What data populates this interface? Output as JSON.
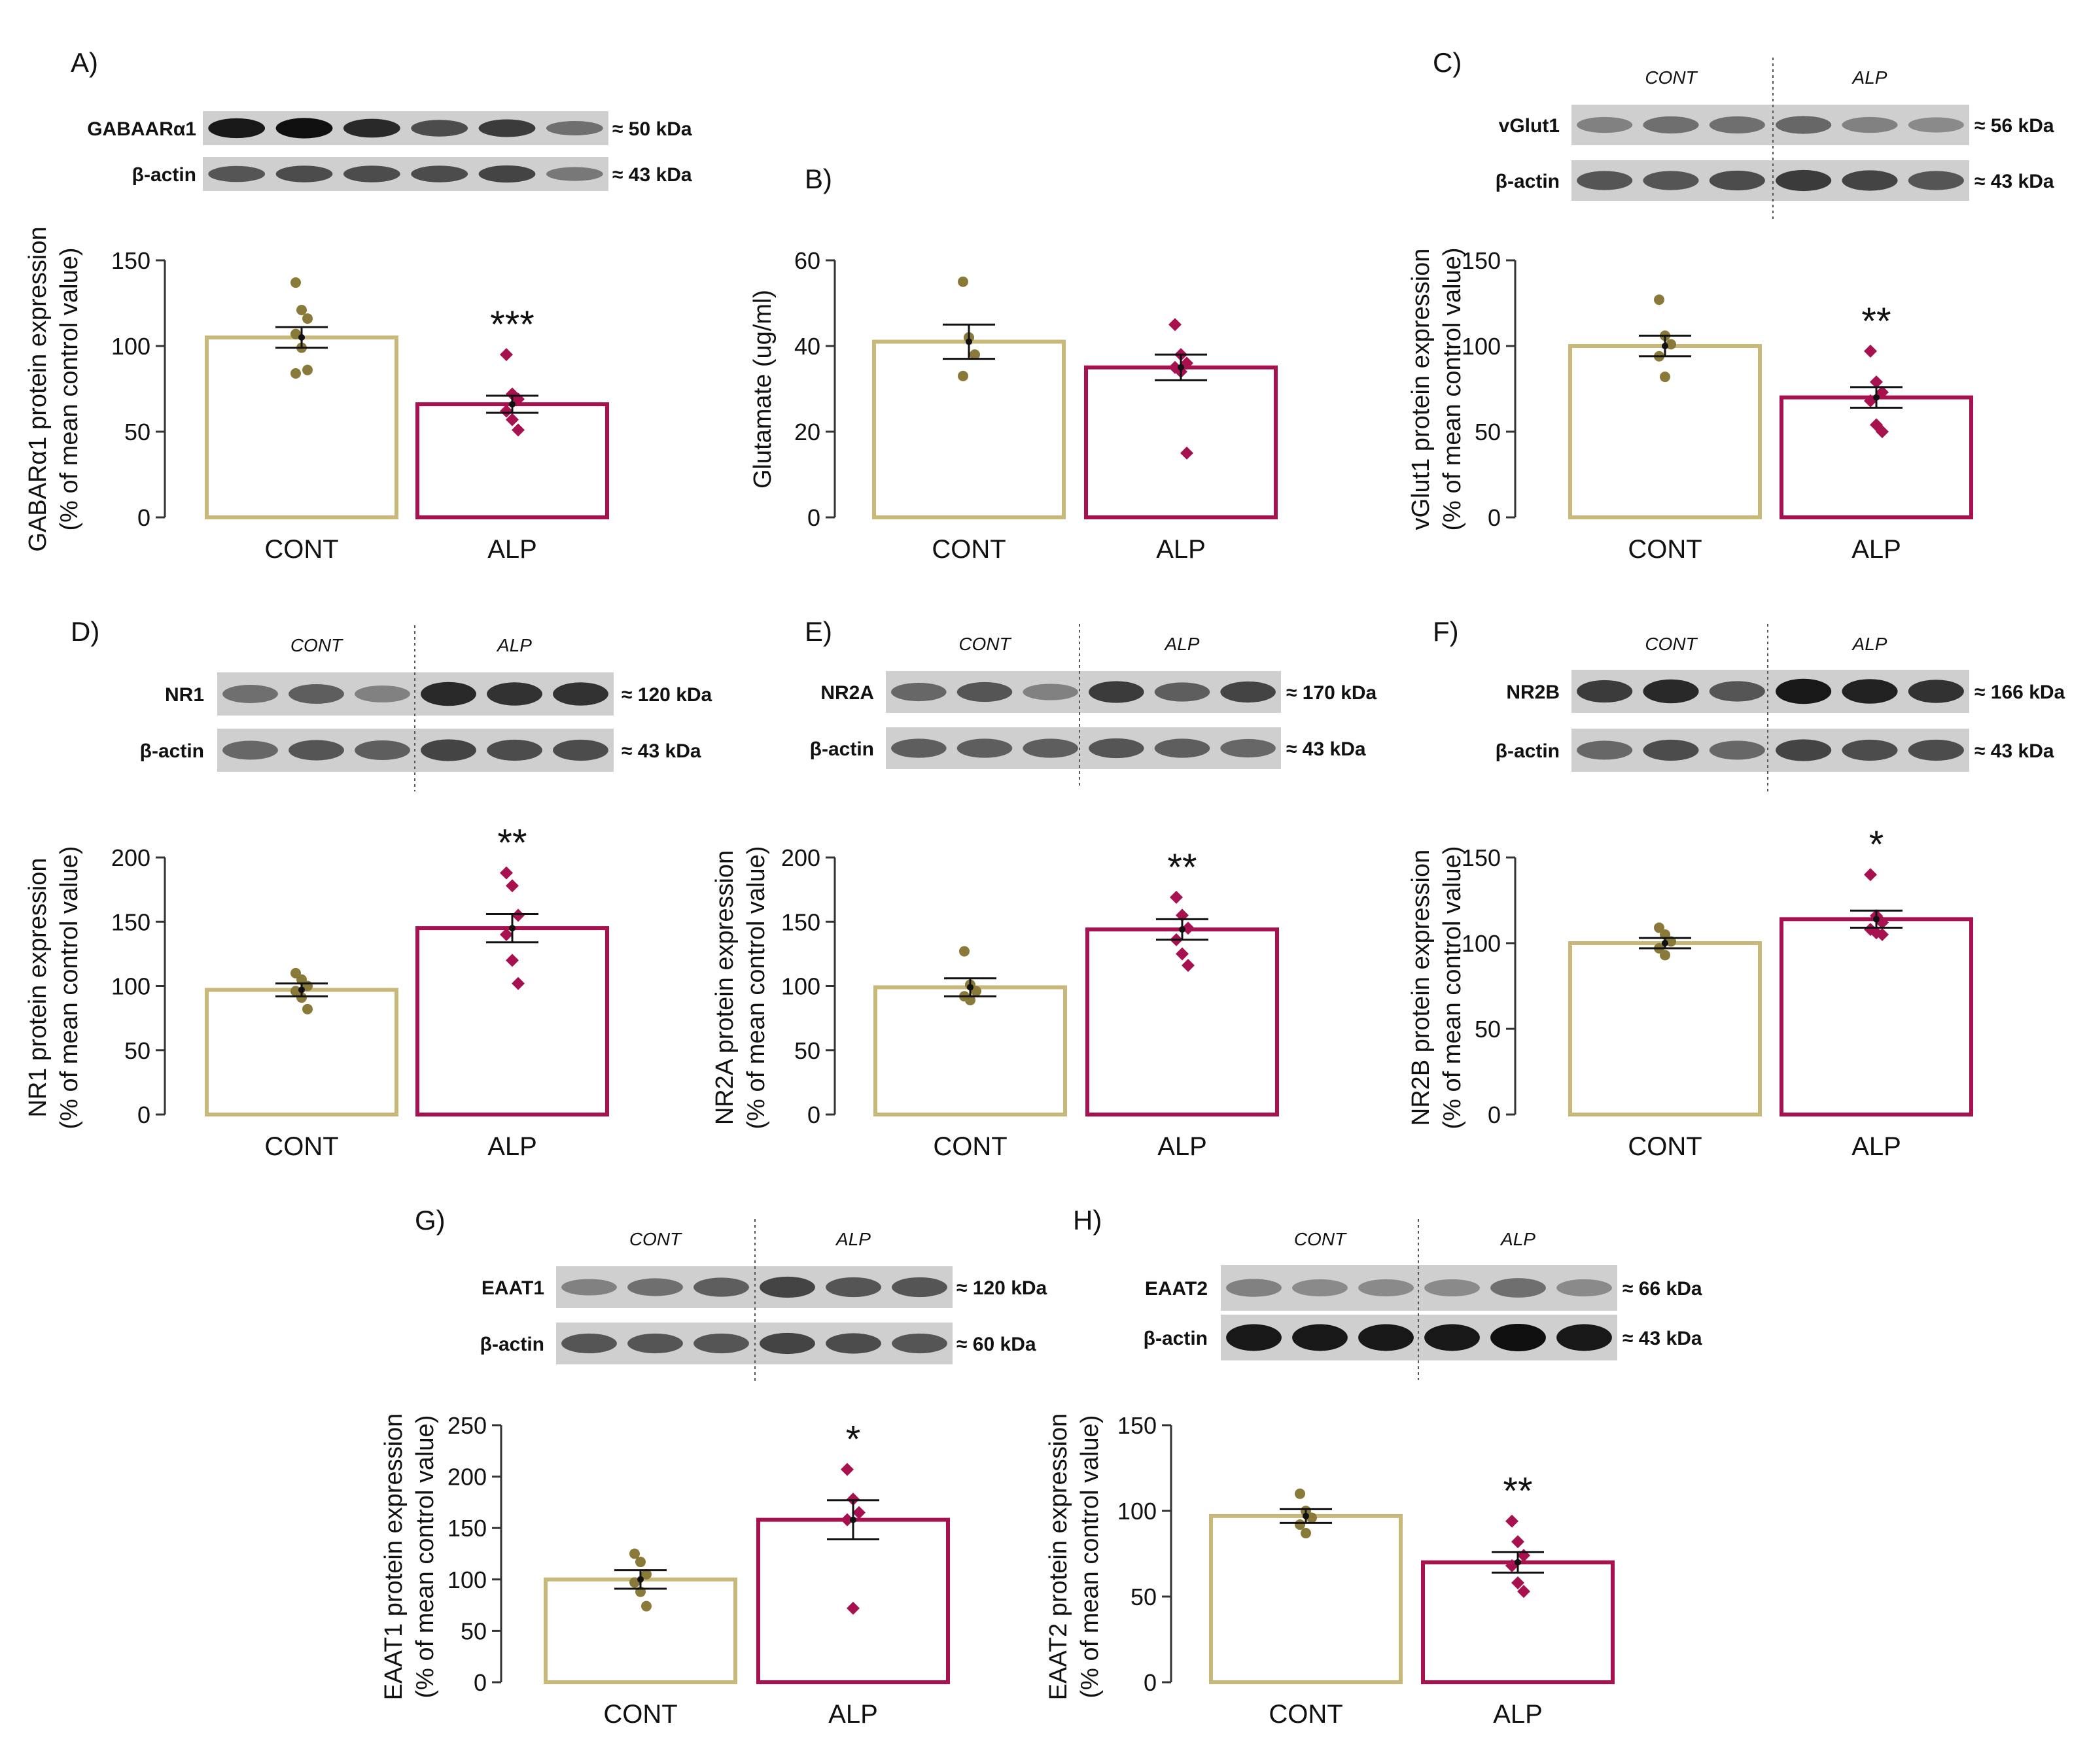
{
  "figure": {
    "colors": {
      "cont": "#c8b87a",
      "alp": "#a8114f",
      "cont_dot": "#8a7a3a",
      "alp_dot": "#a8114f",
      "axis": "#333333",
      "ink": "#111111"
    },
    "blot_group_labels": {
      "cont": "CONT",
      "alp": "ALP"
    },
    "beta_actin_label": "β-actin"
  },
  "blots": [
    {
      "panel": "A",
      "protein": "GABAARα1",
      "protein_kda": "≈ 50 kDa",
      "loading_kda": "≈ 43 kDa",
      "grouped": false,
      "protein_intensity": [
        0.95,
        1.0,
        0.85,
        0.65,
        0.75,
        0.45
      ],
      "loading_intensity": [
        0.6,
        0.65,
        0.65,
        0.65,
        0.7,
        0.4
      ]
    },
    {
      "panel": "C",
      "protein": "vGlut1",
      "protein_kda": "≈ 56 kDa",
      "loading_kda": "≈ 43 kDa",
      "grouped": true,
      "protein_intensity": [
        0.35,
        0.45,
        0.45,
        0.5,
        0.35,
        0.3
      ],
      "loading_intensity": [
        0.6,
        0.6,
        0.65,
        0.75,
        0.7,
        0.6
      ]
    },
    {
      "panel": "D",
      "protein": "NR1",
      "protein_kda": "≈ 120 kDa",
      "loading_kda": "≈ 43 kDa",
      "grouped": true,
      "protein_intensity": [
        0.45,
        0.55,
        0.35,
        0.85,
        0.8,
        0.8
      ],
      "loading_intensity": [
        0.5,
        0.6,
        0.55,
        0.7,
        0.65,
        0.65
      ]
    },
    {
      "panel": "E",
      "protein": "NR2A",
      "protein_kda": "≈ 170 kDa",
      "loading_kda": "≈ 43 kDa",
      "grouped": true,
      "protein_intensity": [
        0.5,
        0.6,
        0.35,
        0.75,
        0.55,
        0.7
      ],
      "loading_intensity": [
        0.55,
        0.55,
        0.55,
        0.6,
        0.55,
        0.5
      ]
    },
    {
      "panel": "F",
      "protein": "NR2B",
      "protein_kda": "≈ 166 kDa",
      "loading_kda": "≈ 43 kDa",
      "grouped": true,
      "protein_intensity": [
        0.75,
        0.85,
        0.6,
        0.95,
        0.9,
        0.8
      ],
      "loading_intensity": [
        0.5,
        0.65,
        0.5,
        0.7,
        0.65,
        0.65
      ]
    },
    {
      "panel": "G",
      "protein": "EAAT1",
      "protein_kda": "≈ 120 kDa",
      "loading_kda": "≈ 60 kDa",
      "grouped": true,
      "protein_intensity": [
        0.35,
        0.45,
        0.55,
        0.7,
        0.6,
        0.6
      ],
      "loading_intensity": [
        0.6,
        0.6,
        0.6,
        0.7,
        0.65,
        0.6
      ]
    },
    {
      "panel": "H",
      "protein": "EAAT2",
      "protein_kda": "≈ 66 kDa",
      "loading_kda": "≈ 43 kDa",
      "grouped": true,
      "protein_intensity": [
        0.35,
        0.3,
        0.3,
        0.3,
        0.45,
        0.3
      ],
      "loading_intensity": [
        0.95,
        0.95,
        0.95,
        0.95,
        1.0,
        0.95
      ]
    }
  ],
  "chart_data": [
    {
      "panel": "A)",
      "type": "bar",
      "categories": [
        "CONT",
        "ALP"
      ],
      "values": [
        105,
        66
      ],
      "sem": [
        6,
        5
      ],
      "points": [
        [
          137,
          121,
          116,
          107,
          99,
          86,
          84
        ],
        [
          95,
          72,
          69,
          62,
          57,
          51
        ]
      ],
      "ylabel": "GABARα1 protein expression",
      "ylabel2": "(% of mean control value)",
      "ylim": [
        0,
        150
      ],
      "yticks": [
        0,
        50,
        100,
        150
      ],
      "significance": [
        "",
        "***"
      ]
    },
    {
      "panel": "B)",
      "type": "bar",
      "categories": [
        "CONT",
        "ALP"
      ],
      "values": [
        41,
        35
      ],
      "sem": [
        4,
        3
      ],
      "points": [
        [
          55,
          42,
          38,
          33
        ],
        [
          45,
          38,
          36,
          35,
          34,
          15
        ]
      ],
      "ylabel": "Glutamate (ug/ml)",
      "ylabel2": "",
      "ylim": [
        0,
        60
      ],
      "yticks": [
        0,
        20,
        40,
        60
      ],
      "significance": [
        "",
        ""
      ]
    },
    {
      "panel": "C)",
      "type": "bar",
      "categories": [
        "CONT",
        "ALP"
      ],
      "values": [
        100,
        70
      ],
      "sem": [
        6,
        6
      ],
      "points": [
        [
          127,
          106,
          101,
          94,
          82
        ],
        [
          97,
          79,
          73,
          68,
          54,
          50
        ]
      ],
      "ylabel": "vGlut1 protein expression",
      "ylabel2": "(% of mean control value)",
      "ylim": [
        0,
        150
      ],
      "yticks": [
        0,
        50,
        100,
        150
      ],
      "significance": [
        "",
        "**"
      ]
    },
    {
      "panel": "D)",
      "type": "bar",
      "categories": [
        "CONT",
        "ALP"
      ],
      "values": [
        97,
        145
      ],
      "sem": [
        5,
        11
      ],
      "points": [
        [
          110,
          105,
          100,
          96,
          91,
          82
        ],
        [
          188,
          178,
          155,
          140,
          120,
          102
        ]
      ],
      "ylabel": "NR1 protein expression",
      "ylabel2": "(% of mean control value)",
      "ylim": [
        0,
        200
      ],
      "yticks": [
        0,
        50,
        100,
        150,
        200
      ],
      "significance": [
        "",
        "**"
      ]
    },
    {
      "panel": "E)",
      "type": "bar",
      "categories": [
        "CONT",
        "ALP"
      ],
      "values": [
        99,
        144
      ],
      "sem": [
        7,
        8
      ],
      "points": [
        [
          127,
          101,
          96,
          92,
          89
        ],
        [
          169,
          155,
          145,
          136,
          125,
          116
        ]
      ],
      "ylabel": "NR2A protein expression",
      "ylabel2": "(% of mean control value)",
      "ylim": [
        0,
        200
      ],
      "yticks": [
        0,
        50,
        100,
        150,
        200
      ],
      "significance": [
        "",
        "**"
      ]
    },
    {
      "panel": "F)",
      "type": "bar",
      "categories": [
        "CONT",
        "ALP"
      ],
      "values": [
        100,
        114
      ],
      "sem": [
        3,
        5
      ],
      "points": [
        [
          109,
          105,
          101,
          97,
          93
        ],
        [
          140,
          116,
          112,
          108,
          106,
          105
        ]
      ],
      "ylabel": "NR2B protein expression",
      "ylabel2": "(% of mean control value)",
      "ylim": [
        0,
        150
      ],
      "yticks": [
        0,
        50,
        100,
        150
      ],
      "significance": [
        "",
        "*"
      ]
    },
    {
      "panel": "G)",
      "type": "bar",
      "categories": [
        "CONT",
        "ALP"
      ],
      "values": [
        100,
        158
      ],
      "sem": [
        9,
        19
      ],
      "points": [
        [
          125,
          117,
          105,
          97,
          88,
          74
        ],
        [
          207,
          178,
          165,
          158,
          72
        ]
      ],
      "ylabel": "EAAT1 protein expression",
      "ylabel2": "(% of mean control value)",
      "ylim": [
        0,
        250
      ],
      "yticks": [
        0,
        50,
        100,
        150,
        200,
        250
      ],
      "significance": [
        "",
        "*"
      ]
    },
    {
      "panel": "H)",
      "type": "bar",
      "categories": [
        "CONT",
        "ALP"
      ],
      "values": [
        97,
        70
      ],
      "sem": [
        4,
        6
      ],
      "points": [
        [
          110,
          100,
          96,
          92,
          87
        ],
        [
          94,
          82,
          74,
          68,
          58,
          53
        ]
      ],
      "ylabel": "EAAT2 protein expression",
      "ylabel2": "(% of mean control value)",
      "ylim": [
        0,
        150
      ],
      "yticks": [
        0,
        50,
        100,
        150
      ],
      "significance": [
        "",
        "**"
      ]
    }
  ]
}
